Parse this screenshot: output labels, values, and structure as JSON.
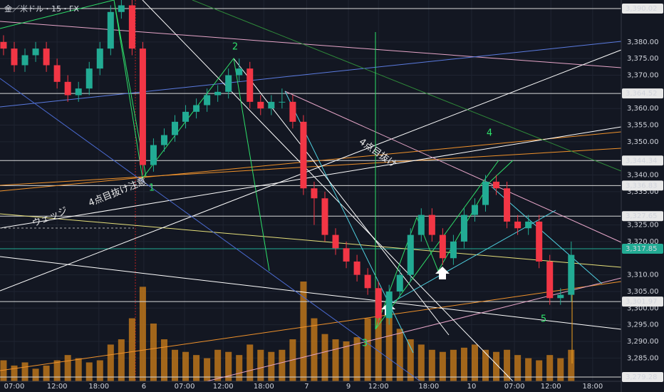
{
  "chart_data": {
    "type": "candlestick",
    "title": "金／米ドル・15・FX",
    "open": [
      3380,
      3378,
      3373,
      3376,
      3378,
      3373,
      3368,
      3364,
      3366,
      3372,
      3378,
      3389,
      3391,
      3378,
      3343,
      3349,
      3352,
      3356,
      3359,
      3361,
      3364,
      3365,
      3370,
      3372,
      3362,
      3360,
      3362,
      3362,
      3356,
      3336,
      3333,
      3322,
      3318,
      3314,
      3310,
      3306,
      3297,
      3305,
      3310,
      3322,
      3328,
      3322,
      3315,
      3320,
      3328,
      3331,
      3338,
      3336,
      3326,
      3324,
      3326,
      3314,
      3303,
      3304
    ],
    "high": [
      3382,
      3380,
      3378,
      3380,
      3380,
      3375,
      3370,
      3368,
      3374,
      3380,
      3391,
      3393,
      3393,
      3380,
      3351,
      3354,
      3358,
      3361,
      3363,
      3366,
      3367,
      3372,
      3375,
      3374,
      3364,
      3364,
      3366,
      3364,
      3358,
      3338,
      3335,
      3324,
      3320,
      3316,
      3312,
      3308,
      3307,
      3312,
      3324,
      3330,
      3330,
      3324,
      3322,
      3330,
      3333,
      3340,
      3340,
      3338,
      3328,
      3328,
      3328,
      3316,
      3306,
      3320
    ],
    "low": [
      3376,
      3371,
      3371,
      3374,
      3371,
      3366,
      3362,
      3362,
      3364,
      3370,
      3376,
      3387,
      3376,
      3340,
      3341,
      3347,
      3350,
      3354,
      3357,
      3359,
      3362,
      3363,
      3368,
      3360,
      3358,
      3358,
      3360,
      3354,
      3334,
      3325,
      3320,
      3316,
      3312,
      3308,
      3304,
      3295,
      3295,
      3303,
      3308,
      3320,
      3320,
      3313,
      3313,
      3318,
      3326,
      3329,
      3334,
      3324,
      3322,
      3322,
      3312,
      3301,
      3301,
      3302
    ],
    "close": [
      3378,
      3373,
      3376,
      3378,
      3373,
      3368,
      3364,
      3366,
      3372,
      3378,
      3389,
      3391,
      3378,
      3343,
      3349,
      3352,
      3356,
      3359,
      3361,
      3364,
      3365,
      3370,
      3372,
      3362,
      3360,
      3362,
      3362,
      3356,
      3336,
      3333,
      3322,
      3318,
      3314,
      3310,
      3306,
      3297,
      3305,
      3310,
      3322,
      3328,
      3322,
      3315,
      3320,
      3328,
      3331,
      3338,
      3336,
      3326,
      3324,
      3326,
      3314,
      3303,
      3304,
      3316
    ],
    "volume": [
      20,
      15,
      18,
      12,
      15,
      20,
      25,
      22,
      18,
      20,
      35,
      40,
      60,
      90,
      55,
      40,
      30,
      28,
      25,
      22,
      30,
      28,
      25,
      35,
      30,
      28,
      30,
      40,
      95,
      60,
      45,
      40,
      38,
      42,
      60,
      85,
      70,
      50,
      40,
      35,
      30,
      28,
      30,
      32,
      35,
      30,
      28,
      30,
      25,
      22,
      20,
      25,
      22,
      30
    ],
    "up_color": "#22ab94",
    "down_color": "#f23645",
    "volume_color": "#c77a1a",
    "xlim": [
      -0.33,
      57.67
    ],
    "ylim": [
      3278,
      3392.6
    ],
    "xticks": [
      {
        "value": 1,
        "label": "07:00"
      },
      {
        "value": 5,
        "label": "12:00"
      },
      {
        "value": 8.9,
        "label": "18:00"
      },
      {
        "value": 13.1,
        "label": "6"
      },
      {
        "value": 16.9,
        "label": "07:00"
      },
      {
        "value": 20.5,
        "label": "12:00"
      },
      {
        "value": 24.3,
        "label": "18:00"
      },
      {
        "value": 28.3,
        "label": "7"
      },
      {
        "value": 32.2,
        "label": "9"
      },
      {
        "value": 35,
        "label": "12:00"
      },
      {
        "value": 39.7,
        "label": "18:00"
      },
      {
        "value": 43.7,
        "label": "10"
      },
      {
        "value": 47.7,
        "label": "07:00"
      },
      {
        "value": 51.1,
        "label": "12:00"
      },
      {
        "value": 55,
        "label": "18:00"
      }
    ],
    "yticks": [
      {
        "value": 3285,
        "label": "3,285.00"
      },
      {
        "value": 3290,
        "label": "3,290.00"
      },
      {
        "value": 3295,
        "label": "3,295.00"
      },
      {
        "value": 3300,
        "label": "3,300.00"
      },
      {
        "value": 3305,
        "label": "3,305.00"
      },
      {
        "value": 3310,
        "label": "3,310.00"
      },
      {
        "value": 3320,
        "label": "3,320.00"
      },
      {
        "value": 3325,
        "label": "3,325.00"
      },
      {
        "value": 3335,
        "label": "3,335.00"
      },
      {
        "value": 3340,
        "label": "3,340.00"
      },
      {
        "value": 3350,
        "label": "3,350.00"
      },
      {
        "value": 3355,
        "label": "3,355.00"
      },
      {
        "value": 3360,
        "label": "3,360.00"
      },
      {
        "value": 3370,
        "label": "3,370.00"
      },
      {
        "value": 3375,
        "label": "3,375.00"
      },
      {
        "value": 3380,
        "label": "3,380.00"
      }
    ],
    "price_levels": [
      {
        "value": 3390.02,
        "label": "3,390.02"
      },
      {
        "value": 3364.52,
        "label": "3,364.52"
      },
      {
        "value": 3344.34,
        "label": "3,344.34"
      },
      {
        "value": 3336.83,
        "label": "3,336.83"
      },
      {
        "value": 3327.65,
        "label": "3,327.65"
      },
      {
        "value": 3317.85,
        "label": "3,317.85",
        "color": "#22ab94"
      },
      {
        "value": 3301.97,
        "label": "3,301.97"
      },
      {
        "value": 3279.28,
        "label": "3,279.28"
      }
    ],
    "annotations": [
      "2",
      "1",
      "3",
      "4",
      "5",
      "4点目抜け",
      "4点目抜け注意",
      "ウェッジ"
    ]
  }
}
